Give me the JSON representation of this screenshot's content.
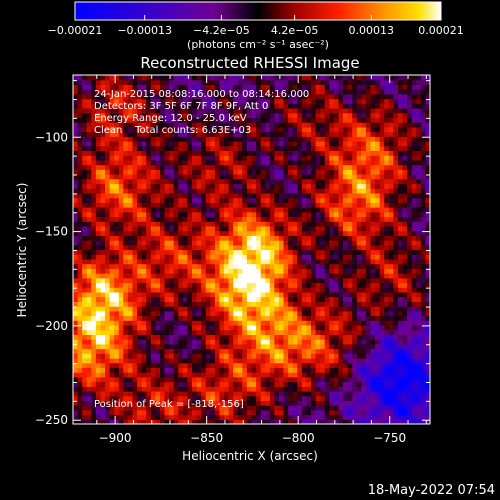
{
  "colorbar": {
    "ticks": [
      "-0.00021",
      "-0.00013",
      "-4.2e-05",
      "4.2e-05",
      "0.00013",
      "0.00021"
    ],
    "tick_values": [
      -0.00021,
      -0.00013,
      -4.2e-05,
      4.2e-05,
      0.00013,
      0.00021
    ],
    "range": [
      -0.00021,
      0.00021
    ],
    "units": "(photons cm⁻² s⁻¹ asec⁻²)",
    "colormap": "RHESSI rainbow/heat: blue-purple-red-orange-yellow-white"
  },
  "chart_data": {
    "type": "heatmap",
    "title": "Reconstructed RHESSI Image",
    "xlabel": "Heliocentric X (arcsec)",
    "ylabel": "Heliocentric Y (arcsec)",
    "xlim": [
      -923,
      -728
    ],
    "ylim": [
      -252,
      -67
    ],
    "x_ticks": [
      -900,
      -850,
      -800,
      -750
    ],
    "x_tick_labels": [
      "-900",
      "-850",
      "-800",
      "-750"
    ],
    "y_ticks": [
      -100,
      -150,
      -200,
      -250
    ],
    "y_tick_labels": [
      "-100",
      "-150",
      "-200",
      "-250"
    ],
    "annotations": [
      "24-Jan-2015 08:08:16.000 to 08:14:16.000",
      "Detectors: 3F 5F 6F 7F 8F 9F, Att 0",
      "Energy Range: 12.0 - 25.0 keV",
      "Clean    Total counts: 6.63E+03"
    ],
    "peak_label": "Position of Peak = [-818,-156]",
    "peak": [
      -818,
      -156
    ],
    "sources": [
      {
        "x": -908,
        "y": -185,
        "amp": 1.0
      },
      {
        "x": -915,
        "y": -215,
        "amp": 0.85
      },
      {
        "x": -900,
        "y": -128,
        "amp": 0.75
      },
      {
        "x": -870,
        "y": -165,
        "amp": 0.55
      },
      {
        "x": -825,
        "y": -160,
        "amp": 1.0
      },
      {
        "x": -830,
        "y": -185,
        "amp": 0.85
      },
      {
        "x": -812,
        "y": -210,
        "amp": 0.65
      },
      {
        "x": -845,
        "y": -115,
        "amp": 0.45
      },
      {
        "x": -840,
        "y": -235,
        "amp": 0.55
      },
      {
        "x": -770,
        "y": -135,
        "amp": 0.75
      },
      {
        "x": -760,
        "y": -105,
        "amp": 0.6
      },
      {
        "x": -785,
        "y": -210,
        "amp": 0.5
      },
      {
        "x": -880,
        "y": -245,
        "amp": 0.5
      },
      {
        "x": -900,
        "y": -85,
        "amp": 0.55
      },
      {
        "x": -795,
        "y": -90,
        "amp": 0.35
      },
      {
        "x": -750,
        "y": -175,
        "amp": 0.45
      }
    ],
    "low_region": {
      "x": -745,
      "y": -230,
      "amp": -0.9
    }
  },
  "footer": {
    "timestamp": "18-May-2022 07:54"
  }
}
